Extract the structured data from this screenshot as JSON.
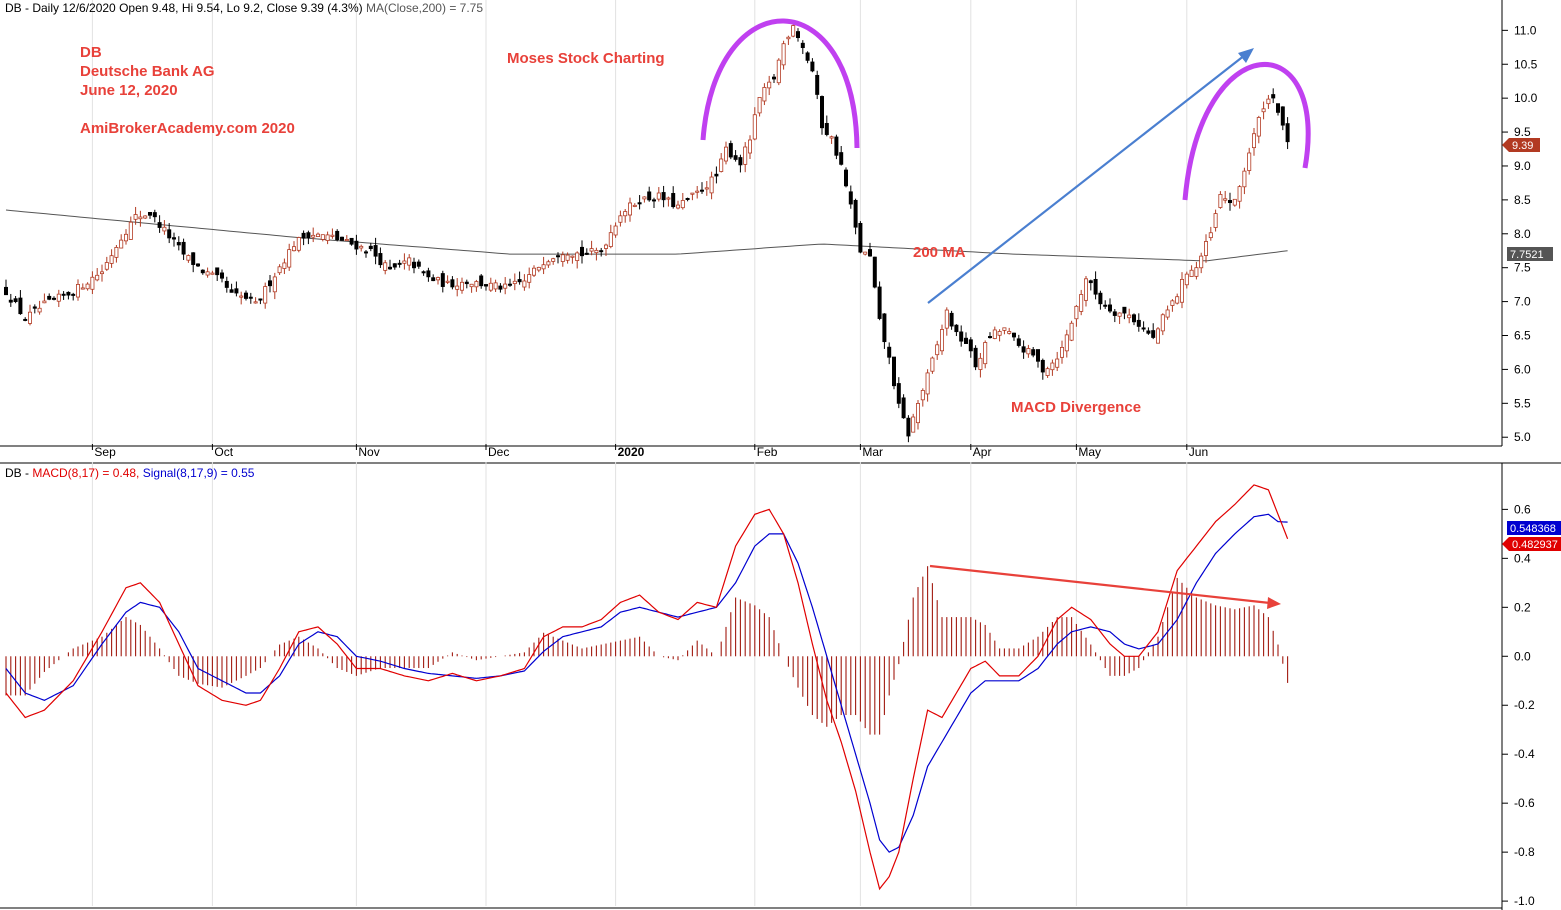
{
  "price_header": {
    "symbol": "DB - Daily 12/6/2020",
    "open": "Open 9.48,",
    "high": "Hi 9.54,",
    "low": "Lo 9.2,",
    "close": "Close 9.39 (4.3%)",
    "ma": "MA(Close,200) = 7.75"
  },
  "macd_header": {
    "symbol": "DB -",
    "macd": "MACD(8,17) = 0.48,",
    "signal": "Signal(8,17,9) = 0.55"
  },
  "annotations": {
    "ticker": "DB",
    "company": "Deutsche Bank AG",
    "date": "June 12, 2020",
    "site": "AmiBrokerAcademy.com  2020",
    "brand": "Moses Stock Charting",
    "ma_label": "200 MA",
    "divergence": "MACD Divergence"
  },
  "price_tags": {
    "last": "9.39",
    "ma": "7.7521"
  },
  "macd_tags": {
    "signal": "0.548368",
    "macd": "0.482937"
  },
  "colors": {
    "up_candle": "#b23a22",
    "down_candle": "#000000",
    "ma_line": "#555555",
    "macd_line": "#e00000",
    "signal_line": "#0000d0",
    "histogram": "#a11a10",
    "annotation_text": "#e8413a",
    "arc": "#c040f0",
    "arrow_up": "#4a7fd0",
    "arrow_down": "#e8413a",
    "last_tag": "#b23a22",
    "ma_tag": "#555555",
    "signal_tag": "#0000d0",
    "macd_tag": "#e00000"
  },
  "chart_data": [
    {
      "type": "candlestick",
      "x_tick_labels": [
        "Sep",
        "Oct",
        "Nov",
        "Dec",
        "2020",
        "Feb",
        "Mar",
        "Apr",
        "May",
        "Jun"
      ],
      "y_ticks": [
        "5.0",
        "5.5",
        "6.0",
        "6.5",
        "7.0",
        "7.5",
        "8.0",
        "8.5",
        "9.0",
        "9.5",
        "10.0",
        "10.5",
        "11.0"
      ],
      "ylim": [
        4.9,
        11.3
      ],
      "bar_count": 225,
      "close_anchors": [
        [
          0,
          7.15
        ],
        [
          4,
          6.75
        ],
        [
          8,
          6.95
        ],
        [
          14,
          7.15
        ],
        [
          20,
          7.45
        ],
        [
          24,
          7.95
        ],
        [
          27,
          8.25
        ],
        [
          30,
          8.3
        ],
        [
          33,
          8.05
        ],
        [
          37,
          7.7
        ],
        [
          41,
          7.45
        ],
        [
          45,
          7.3
        ],
        [
          47,
          7.1
        ],
        [
          50,
          7.05
        ],
        [
          52,
          6.95
        ],
        [
          56,
          7.4
        ],
        [
          60,
          7.85
        ],
        [
          63,
          8.0
        ],
        [
          68,
          7.95
        ],
        [
          72,
          7.85
        ],
        [
          76,
          7.75
        ],
        [
          80,
          7.45
        ],
        [
          84,
          7.6
        ],
        [
          88,
          7.35
        ],
        [
          92,
          7.25
        ],
        [
          96,
          7.3
        ],
        [
          100,
          7.25
        ],
        [
          104,
          7.2
        ],
        [
          108,
          7.3
        ],
        [
          112,
          7.6
        ],
        [
          116,
          7.75
        ],
        [
          120,
          7.7
        ],
        [
          124,
          7.75
        ],
        [
          128,
          8.3
        ],
        [
          132,
          8.5
        ],
        [
          136,
          8.55
        ],
        [
          140,
          8.4
        ],
        [
          144,
          8.6
        ],
        [
          148,
          8.85
        ],
        [
          150,
          9.25
        ],
        [
          153,
          9.05
        ],
        [
          155,
          9.4
        ],
        [
          157,
          10.0
        ],
        [
          160,
          10.3
        ],
        [
          162,
          10.8
        ],
        [
          164,
          11.1
        ],
        [
          166,
          10.75
        ],
        [
          168,
          10.4
        ],
        [
          170,
          9.6
        ],
        [
          172,
          9.4
        ],
        [
          174,
          9.0
        ],
        [
          176,
          8.4
        ],
        [
          178,
          7.75
        ],
        [
          180,
          7.65
        ],
        [
          182,
          6.7
        ],
        [
          184,
          6.15
        ],
        [
          186,
          5.45
        ],
        [
          188,
          5.05
        ],
        [
          190,
          5.5
        ],
        [
          192,
          5.9
        ],
        [
          194,
          6.35
        ],
        [
          196,
          6.85
        ],
        [
          198,
          6.5
        ],
        [
          200,
          6.4
        ],
        [
          202,
          6.05
        ],
        [
          205,
          6.5
        ],
        [
          208,
          6.6
        ],
        [
          211,
          6.35
        ],
        [
          214,
          6.2
        ],
        [
          216,
          6.0
        ],
        [
          218,
          6.1
        ],
        [
          220,
          6.3
        ],
        [
          222,
          6.7
        ],
        [
          225,
          7.35
        ],
        [
          228,
          7.0
        ],
        [
          231,
          6.85
        ],
        [
          234,
          6.8
        ],
        [
          237,
          6.6
        ],
        [
          239,
          6.45
        ],
        [
          241,
          6.75
        ],
        [
          244,
          7.1
        ],
        [
          246,
          7.45
        ],
        [
          248,
          7.5
        ],
        [
          251,
          8.0
        ],
        [
          253,
          8.55
        ],
        [
          256,
          8.45
        ],
        [
          258,
          8.95
        ],
        [
          260,
          9.45
        ],
        [
          262,
          9.9
        ],
        [
          264,
          10.05
        ],
        [
          266,
          9.55
        ],
        [
          267,
          9.39
        ]
      ],
      "ma200": [
        [
          0,
          8.35
        ],
        [
          60,
          7.95
        ],
        [
          105,
          7.7
        ],
        [
          140,
          7.7
        ],
        [
          170,
          7.85
        ],
        [
          210,
          7.7
        ],
        [
          250,
          7.6
        ],
        [
          267,
          7.75
        ]
      ]
    },
    {
      "type": "line",
      "name": "MACD(8,17)",
      "y_ticks": [
        "-1.0",
        "-0.8",
        "-0.6",
        "-0.4",
        "-0.2",
        "0.0",
        "0.2",
        "0.4",
        "0.6"
      ],
      "ylim": [
        -1.02,
        0.72
      ],
      "macd": [
        [
          0,
          -0.15
        ],
        [
          4,
          -0.25
        ],
        [
          8,
          -0.22
        ],
        [
          14,
          -0.1
        ],
        [
          20,
          0.1
        ],
        [
          25,
          0.28
        ],
        [
          28,
          0.3
        ],
        [
          32,
          0.22
        ],
        [
          36,
          0.05
        ],
        [
          40,
          -0.12
        ],
        [
          45,
          -0.18
        ],
        [
          50,
          -0.2
        ],
        [
          53,
          -0.18
        ],
        [
          57,
          -0.05
        ],
        [
          61,
          0.1
        ],
        [
          65,
          0.12
        ],
        [
          69,
          0.05
        ],
        [
          73,
          -0.05
        ],
        [
          78,
          -0.05
        ],
        [
          83,
          -0.08
        ],
        [
          88,
          -0.1
        ],
        [
          93,
          -0.07
        ],
        [
          98,
          -0.1
        ],
        [
          103,
          -0.08
        ],
        [
          108,
          -0.05
        ],
        [
          112,
          0.08
        ],
        [
          116,
          0.12
        ],
        [
          120,
          0.12
        ],
        [
          124,
          0.15
        ],
        [
          128,
          0.22
        ],
        [
          132,
          0.25
        ],
        [
          136,
          0.18
        ],
        [
          140,
          0.15
        ],
        [
          144,
          0.22
        ],
        [
          148,
          0.2
        ],
        [
          152,
          0.45
        ],
        [
          156,
          0.58
        ],
        [
          159,
          0.6
        ],
        [
          162,
          0.5
        ],
        [
          165,
          0.3
        ],
        [
          168,
          0.05
        ],
        [
          171,
          -0.18
        ],
        [
          174,
          -0.35
        ],
        [
          177,
          -0.55
        ],
        [
          180,
          -0.8
        ],
        [
          182,
          -0.95
        ],
        [
          184,
          -0.9
        ],
        [
          186,
          -0.8
        ],
        [
          189,
          -0.5
        ],
        [
          192,
          -0.22
        ],
        [
          195,
          -0.25
        ],
        [
          198,
          -0.15
        ],
        [
          201,
          -0.05
        ],
        [
          204,
          -0.02
        ],
        [
          207,
          -0.08
        ],
        [
          211,
          -0.08
        ],
        [
          215,
          0.0
        ],
        [
          219,
          0.15
        ],
        [
          222,
          0.2
        ],
        [
          226,
          0.15
        ],
        [
          230,
          0.05
        ],
        [
          233,
          0.0
        ],
        [
          236,
          0.0
        ],
        [
          240,
          0.1
        ],
        [
          244,
          0.35
        ],
        [
          248,
          0.45
        ],
        [
          252,
          0.55
        ],
        [
          256,
          0.62
        ],
        [
          260,
          0.7
        ],
        [
          263,
          0.68
        ],
        [
          265,
          0.58
        ],
        [
          267,
          0.48
        ]
      ],
      "signal": [
        [
          0,
          -0.05
        ],
        [
          4,
          -0.15
        ],
        [
          8,
          -0.18
        ],
        [
          14,
          -0.12
        ],
        [
          20,
          0.05
        ],
        [
          25,
          0.18
        ],
        [
          28,
          0.22
        ],
        [
          32,
          0.2
        ],
        [
          36,
          0.1
        ],
        [
          40,
          -0.05
        ],
        [
          45,
          -0.1
        ],
        [
          50,
          -0.15
        ],
        [
          53,
          -0.15
        ],
        [
          57,
          -0.08
        ],
        [
          61,
          0.05
        ],
        [
          65,
          0.1
        ],
        [
          69,
          0.08
        ],
        [
          73,
          0.0
        ],
        [
          78,
          -0.02
        ],
        [
          83,
          -0.05
        ],
        [
          88,
          -0.07
        ],
        [
          93,
          -0.08
        ],
        [
          98,
          -0.09
        ],
        [
          103,
          -0.08
        ],
        [
          108,
          -0.06
        ],
        [
          112,
          0.02
        ],
        [
          116,
          0.08
        ],
        [
          120,
          0.1
        ],
        [
          124,
          0.12
        ],
        [
          128,
          0.18
        ],
        [
          132,
          0.2
        ],
        [
          136,
          0.18
        ],
        [
          140,
          0.16
        ],
        [
          144,
          0.18
        ],
        [
          148,
          0.2
        ],
        [
          152,
          0.3
        ],
        [
          156,
          0.45
        ],
        [
          159,
          0.5
        ],
        [
          162,
          0.5
        ],
        [
          165,
          0.38
        ],
        [
          168,
          0.2
        ],
        [
          171,
          0.0
        ],
        [
          174,
          -0.2
        ],
        [
          177,
          -0.4
        ],
        [
          180,
          -0.6
        ],
        [
          182,
          -0.75
        ],
        [
          184,
          -0.8
        ],
        [
          186,
          -0.78
        ],
        [
          189,
          -0.65
        ],
        [
          192,
          -0.45
        ],
        [
          195,
          -0.35
        ],
        [
          198,
          -0.25
        ],
        [
          201,
          -0.15
        ],
        [
          204,
          -0.1
        ],
        [
          207,
          -0.1
        ],
        [
          211,
          -0.1
        ],
        [
          215,
          -0.05
        ],
        [
          219,
          0.05
        ],
        [
          222,
          0.1
        ],
        [
          226,
          0.12
        ],
        [
          230,
          0.1
        ],
        [
          233,
          0.05
        ],
        [
          236,
          0.03
        ],
        [
          240,
          0.05
        ],
        [
          244,
          0.15
        ],
        [
          248,
          0.3
        ],
        [
          252,
          0.42
        ],
        [
          256,
          0.5
        ],
        [
          260,
          0.57
        ],
        [
          263,
          0.58
        ],
        [
          265,
          0.55
        ],
        [
          267,
          0.548
        ]
      ]
    }
  ]
}
